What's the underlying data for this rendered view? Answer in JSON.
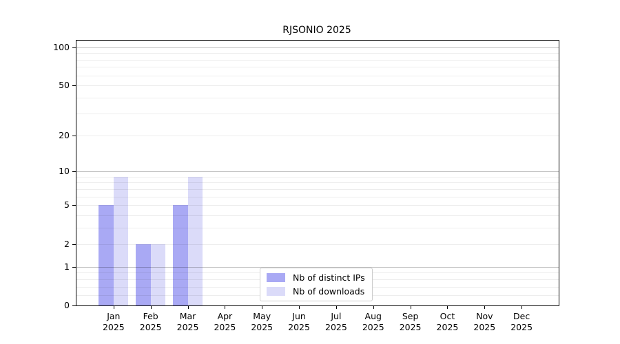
{
  "page": {
    "background": "#ffffff"
  },
  "chart_data": {
    "type": "bar",
    "title": "RJSONIO 2025",
    "year_label": "2025",
    "categories": [
      "Jan",
      "Feb",
      "Mar",
      "Apr",
      "May",
      "Jun",
      "Jul",
      "Aug",
      "Sep",
      "Oct",
      "Nov",
      "Dec"
    ],
    "series": [
      {
        "name": "Nb of distinct IPs",
        "color": "#a9a9f4",
        "values": [
          5,
          2,
          5,
          0,
          0,
          0,
          0,
          0,
          0,
          0,
          0,
          0
        ]
      },
      {
        "name": "Nb of downloads",
        "color": "#dbdbf9",
        "values": [
          9,
          2,
          9,
          0,
          0,
          0,
          0,
          0,
          0,
          0,
          0,
          0
        ]
      }
    ],
    "yscale": "log1p",
    "ylim": [
      0,
      113
    ],
    "y_ticks": [
      100,
      50,
      20,
      10,
      5,
      2,
      1,
      0
    ],
    "y_gridlines_decade": [
      1,
      10,
      100
    ],
    "y_gridlines_faint": [
      0.2,
      0.4,
      0.6,
      0.8,
      2,
      3,
      4,
      5,
      6,
      7,
      8,
      9,
      20,
      30,
      40,
      50,
      60,
      70,
      80,
      90
    ],
    "xlabel": "",
    "ylabel": "",
    "grid": true,
    "legend_position": "lower center",
    "colors": {
      "axis": "#000000",
      "grid_decade": "rgba(0,0,0,0.25)",
      "grid_faint": "rgba(0,0,0,0.07)",
      "legend_border": "#cccccc",
      "text": "#000000"
    }
  }
}
